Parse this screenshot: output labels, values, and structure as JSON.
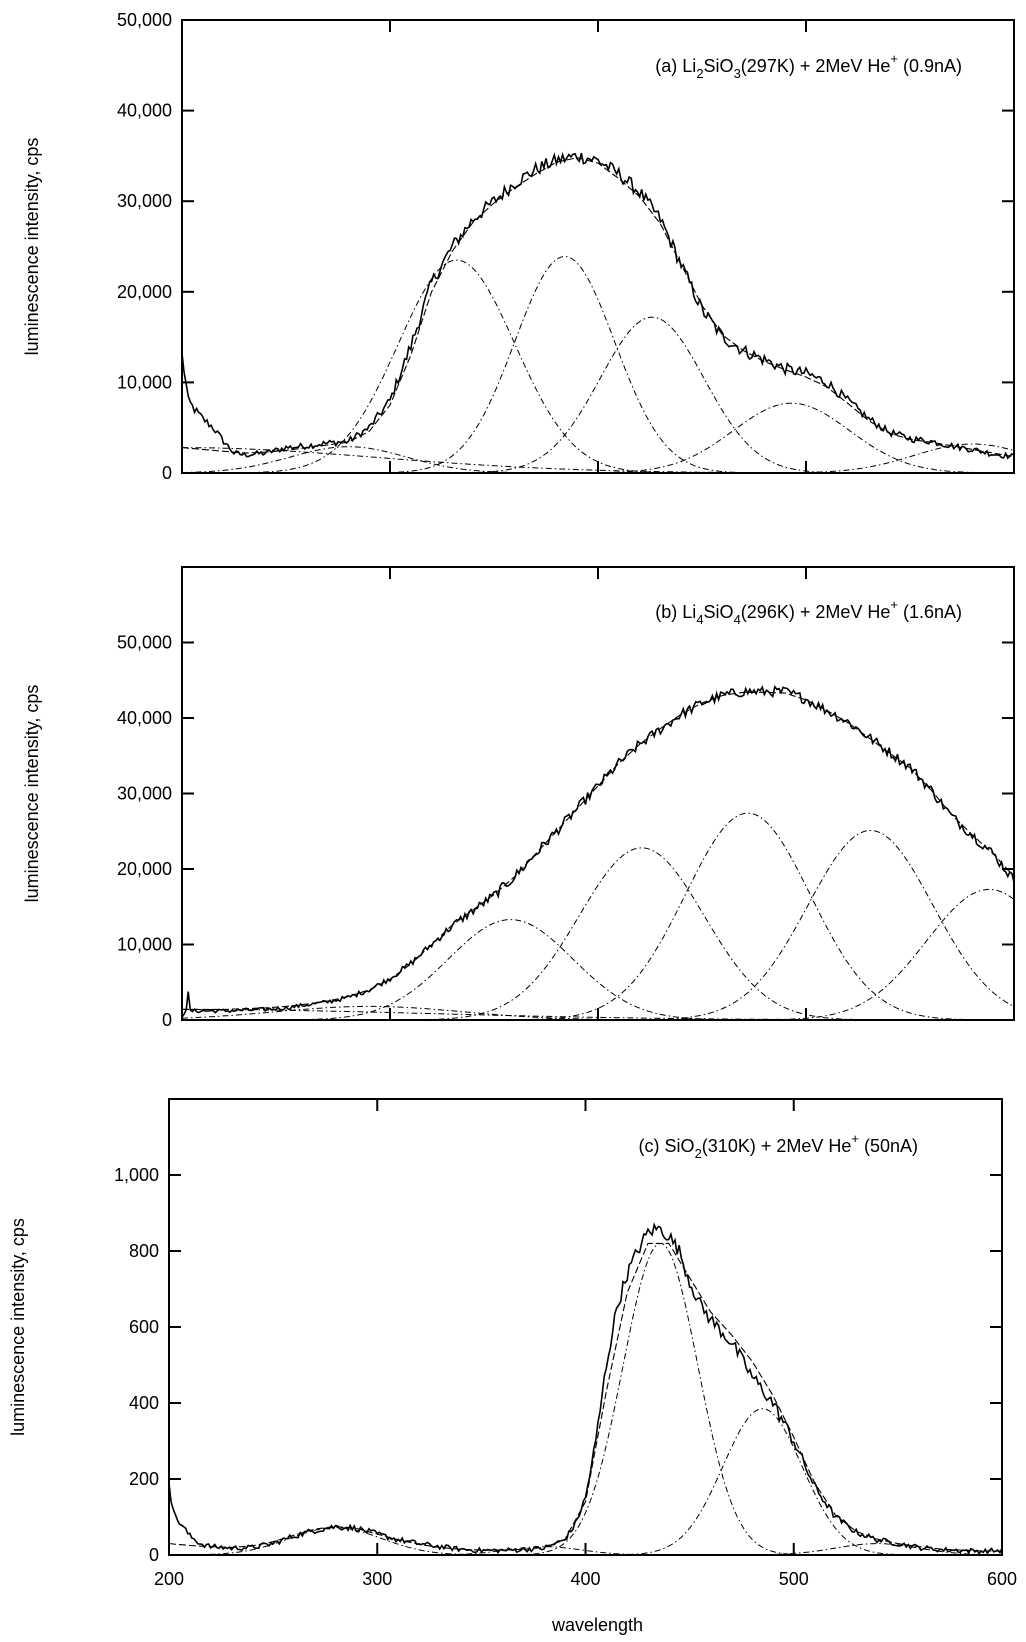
{
  "chart_data": [
    {
      "type": "line",
      "panel": "a",
      "annotation": {
        "label": "(a)",
        "material_parts": [
          [
            "Li",
            ""
          ],
          [
            "2",
            "sub"
          ],
          [
            "SiO",
            ""
          ],
          [
            "3",
            "sub"
          ]
        ],
        "condition": "(297K) + 2MeV He",
        "ion_charge": "+",
        "current": "(0.9nA)"
      },
      "ylabel": "luminescence intensity, cps",
      "xlabel": "",
      "xlim": [
        200,
        600
      ],
      "ylim": [
        0,
        50000
      ],
      "y_ticks": [
        0,
        10000,
        20000,
        30000,
        40000,
        50000
      ],
      "y_tick_labels": [
        "0",
        "10,000",
        "20,000",
        "30,000",
        "40,000",
        "50,000"
      ],
      "x_ticks": [
        200,
        300,
        400,
        500,
        600
      ],
      "x_tick_labels": [],
      "series": [
        {
          "role": "measured",
          "style": "solid",
          "x": [
            200,
            203,
            206,
            210,
            215,
            220,
            225,
            230,
            240,
            250,
            260,
            270,
            280,
            290,
            300,
            310,
            320,
            330,
            340,
            350,
            360,
            370,
            380,
            390,
            400,
            410,
            420,
            430,
            440,
            450,
            460,
            470,
            480,
            490,
            500,
            510,
            520,
            530,
            540,
            550,
            560,
            570,
            580,
            590,
            600
          ],
          "y": [
            13000,
            8000,
            7000,
            6000,
            5000,
            3500,
            2200,
            2000,
            2200,
            2800,
            3000,
            3300,
            3500,
            5000,
            8000,
            14000,
            21000,
            25000,
            28000,
            30000,
            32000,
            33500,
            34500,
            35000,
            34500,
            33000,
            31000,
            28000,
            23000,
            18000,
            15000,
            13500,
            12500,
            11500,
            11000,
            10000,
            8000,
            6000,
            4500,
            3800,
            3500,
            3000,
            2600,
            2100,
            1800
          ],
          "noise": 500
        },
        {
          "role": "fit",
          "style": "dash",
          "x": [
            200,
            210,
            220,
            230,
            240,
            250,
            260,
            270,
            280,
            290,
            300,
            310,
            320,
            330,
            340,
            350,
            360,
            370,
            380,
            390,
            400,
            410,
            420,
            430,
            440,
            450,
            460,
            470,
            480,
            490,
            500,
            510,
            520,
            530,
            540,
            550,
            560,
            570,
            580,
            590,
            600
          ],
          "y": [
            2800,
            2600,
            2400,
            2200,
            2300,
            2500,
            2800,
            3100,
            3400,
            4600,
            7500,
            13000,
            20000,
            24500,
            27700,
            29800,
            31500,
            33000,
            34300,
            34800,
            34200,
            32500,
            30500,
            27500,
            23000,
            18500,
            15200,
            13500,
            12300,
            11400,
            10600,
            9500,
            7700,
            5800,
            4400,
            3700,
            3400,
            3000,
            2600,
            2200,
            1800
          ]
        },
        {
          "role": "component",
          "style": "dashdot",
          "center": 332,
          "amplitude": 23500,
          "sigma": 28
        },
        {
          "role": "component",
          "style": "dashdot",
          "center": 384,
          "amplitude": 23900,
          "sigma": 24
        },
        {
          "role": "component",
          "style": "dashdot",
          "center": 426,
          "amplitude": 17200,
          "sigma": 25
        },
        {
          "role": "component",
          "style": "dashdot",
          "center": 493,
          "amplitude": 7700,
          "sigma": 28
        },
        {
          "role": "component",
          "style": "dashdot",
          "center": 580,
          "amplitude": 3200,
          "sigma": 28
        },
        {
          "role": "component",
          "style": "dashdot",
          "center": 280,
          "amplitude": 2900,
          "sigma": 28
        },
        {
          "role": "component",
          "style": "dashdot",
          "center": 200,
          "amplitude": 2800,
          "sigma": 95
        }
      ]
    },
    {
      "type": "line",
      "panel": "b",
      "annotation": {
        "label": "(b)",
        "material_parts": [
          [
            "Li",
            ""
          ],
          [
            "4",
            "sub"
          ],
          [
            "SiO",
            ""
          ],
          [
            "4",
            "sub"
          ]
        ],
        "condition": "(296K) + 2MeV He",
        "ion_charge": "+",
        "current": "(1.6nA)"
      },
      "ylabel": "luminescence intensity, cps",
      "xlabel": "",
      "xlim": [
        200,
        600
      ],
      "ylim": [
        0,
        60000
      ],
      "y_ticks": [
        0,
        10000,
        20000,
        30000,
        40000,
        50000
      ],
      "y_tick_labels": [
        "0",
        "10,000",
        "20,000",
        "30,000",
        "40,000",
        "50,000"
      ],
      "x_ticks": [
        200,
        300,
        400,
        500,
        600
      ],
      "x_tick_labels": [],
      "series": [
        {
          "role": "measured",
          "style": "solid",
          "x": [
            200,
            202,
            203,
            204,
            206,
            210,
            220,
            230,
            240,
            250,
            260,
            270,
            280,
            290,
            300,
            310,
            320,
            330,
            340,
            350,
            360,
            370,
            380,
            390,
            400,
            410,
            420,
            430,
            440,
            450,
            460,
            470,
            480,
            490,
            500,
            510,
            520,
            530,
            540,
            550,
            560,
            570,
            580,
            590,
            600
          ],
          "y": [
            500,
            1500,
            3500,
            1200,
            1200,
            1200,
            1200,
            1300,
            1400,
            1600,
            2000,
            2400,
            3000,
            4000,
            5500,
            7500,
            10000,
            12500,
            14500,
            16500,
            19000,
            22000,
            25000,
            28000,
            31000,
            34000,
            36500,
            38500,
            40500,
            42000,
            43000,
            43500,
            43500,
            43500,
            42500,
            41000,
            39500,
            37500,
            35500,
            33500,
            30500,
            27000,
            24500,
            22000,
            18500
          ],
          "noise": 450
        },
        {
          "role": "fit",
          "style": "dash",
          "x": [
            200,
            210,
            220,
            230,
            240,
            250,
            260,
            270,
            280,
            290,
            300,
            310,
            320,
            330,
            340,
            350,
            360,
            370,
            380,
            390,
            400,
            410,
            420,
            430,
            440,
            450,
            460,
            470,
            480,
            490,
            500,
            510,
            520,
            530,
            540,
            550,
            560,
            570,
            580,
            590,
            600
          ],
          "y": [
            1400,
            1400,
            1400,
            1500,
            1600,
            1800,
            2100,
            2500,
            3100,
            4000,
            5400,
            7400,
            10000,
            12600,
            14600,
            16600,
            19000,
            22000,
            25000,
            28000,
            31000,
            34000,
            36500,
            38600,
            40500,
            42000,
            43000,
            43400,
            43400,
            43300,
            42400,
            41000,
            39400,
            37400,
            35400,
            33400,
            30500,
            27200,
            24500,
            22000,
            19000
          ]
        },
        {
          "role": "component",
          "style": "dashdot",
          "center": 358,
          "amplitude": 13300,
          "sigma": 30
        },
        {
          "role": "component",
          "style": "dashdot",
          "center": 421,
          "amplitude": 22800,
          "sigma": 30
        },
        {
          "role": "component",
          "style": "dashdot",
          "center": 472,
          "amplitude": 27400,
          "sigma": 30
        },
        {
          "role": "component",
          "style": "dashdot",
          "center": 531,
          "amplitude": 25100,
          "sigma": 30
        },
        {
          "role": "component",
          "style": "dashdot",
          "center": 588,
          "amplitude": 17300,
          "sigma": 30
        },
        {
          "role": "component",
          "style": "dashdot",
          "center": 290,
          "amplitude": 1800,
          "sigma": 45
        },
        {
          "role": "component",
          "style": "dashdot",
          "center": 200,
          "amplitude": 1400,
          "sigma": 120
        }
      ]
    },
    {
      "type": "line",
      "panel": "c",
      "annotation": {
        "label": "(c)",
        "material_parts": [
          [
            "SiO",
            ""
          ],
          [
            "2",
            "sub"
          ]
        ],
        "condition": "(310K) + 2MeV He",
        "ion_charge": "+",
        "current": "(50nA)"
      },
      "ylabel": "luminescence intensity, cps",
      "xlabel": "wavelength",
      "xlim": [
        200,
        600
      ],
      "ylim": [
        0,
        1200
      ],
      "y_ticks": [
        0,
        200,
        400,
        600,
        800,
        1000
      ],
      "y_tick_labels": [
        "0",
        "200",
        "400",
        "600",
        "800",
        "1,000"
      ],
      "x_ticks": [
        200,
        300,
        400,
        500,
        600
      ],
      "x_tick_labels": [
        "200",
        "300",
        "400",
        "500",
        "600"
      ],
      "series": [
        {
          "role": "measured",
          "style": "solid",
          "x": [
            200,
            201,
            203,
            206,
            210,
            215,
            220,
            230,
            240,
            250,
            260,
            270,
            280,
            290,
            300,
            310,
            320,
            330,
            340,
            350,
            360,
            370,
            380,
            390,
            395,
            400,
            405,
            410,
            415,
            420,
            425,
            430,
            435,
            440,
            445,
            450,
            455,
            460,
            465,
            470,
            480,
            490,
            500,
            510,
            520,
            530,
            540,
            550,
            560,
            570,
            580,
            590,
            600
          ],
          "y": [
            200,
            150,
            100,
            80,
            50,
            30,
            22,
            18,
            20,
            30,
            50,
            65,
            75,
            70,
            55,
            40,
            30,
            22,
            15,
            12,
            12,
            14,
            18,
            40,
            80,
            150,
            300,
            500,
            650,
            740,
            800,
            850,
            860,
            840,
            800,
            720,
            660,
            620,
            590,
            560,
            470,
            400,
            300,
            180,
            100,
            60,
            40,
            30,
            20,
            14,
            12,
            10,
            12
          ],
          "noise": 12
        },
        {
          "role": "fit",
          "style": "dash",
          "x": [
            200,
            210,
            220,
            230,
            240,
            250,
            260,
            270,
            280,
            290,
            300,
            310,
            320,
            330,
            340,
            350,
            360,
            370,
            380,
            390,
            400,
            410,
            420,
            430,
            440,
            450,
            460,
            470,
            480,
            490,
            500,
            510,
            520,
            530,
            540,
            550,
            560,
            570,
            580,
            590,
            600
          ],
          "y": [
            30,
            25,
            22,
            20,
            24,
            35,
            52,
            68,
            75,
            70,
            55,
            40,
            28,
            20,
            15,
            13,
            13,
            15,
            20,
            40,
            140,
            430,
            690,
            820,
            820,
            730,
            640,
            580,
            510,
            420,
            310,
            190,
            105,
            62,
            42,
            30,
            22,
            16,
            13,
            11,
            10
          ]
        },
        {
          "role": "component",
          "style": "dashdot",
          "center": 436,
          "amplitude": 820,
          "sigma": 18
        },
        {
          "role": "component",
          "style": "dashdot",
          "center": 485,
          "amplitude": 385,
          "sigma": 19
        },
        {
          "role": "component",
          "style": "dashdot",
          "center": 280,
          "amplitude": 72,
          "sigma": 22
        },
        {
          "role": "component",
          "style": "dashdot",
          "center": 540,
          "amplitude": 30,
          "sigma": 20
        },
        {
          "role": "component",
          "style": "dashdot",
          "center": 380,
          "amplitude": 22,
          "sigma": 18
        }
      ]
    }
  ]
}
